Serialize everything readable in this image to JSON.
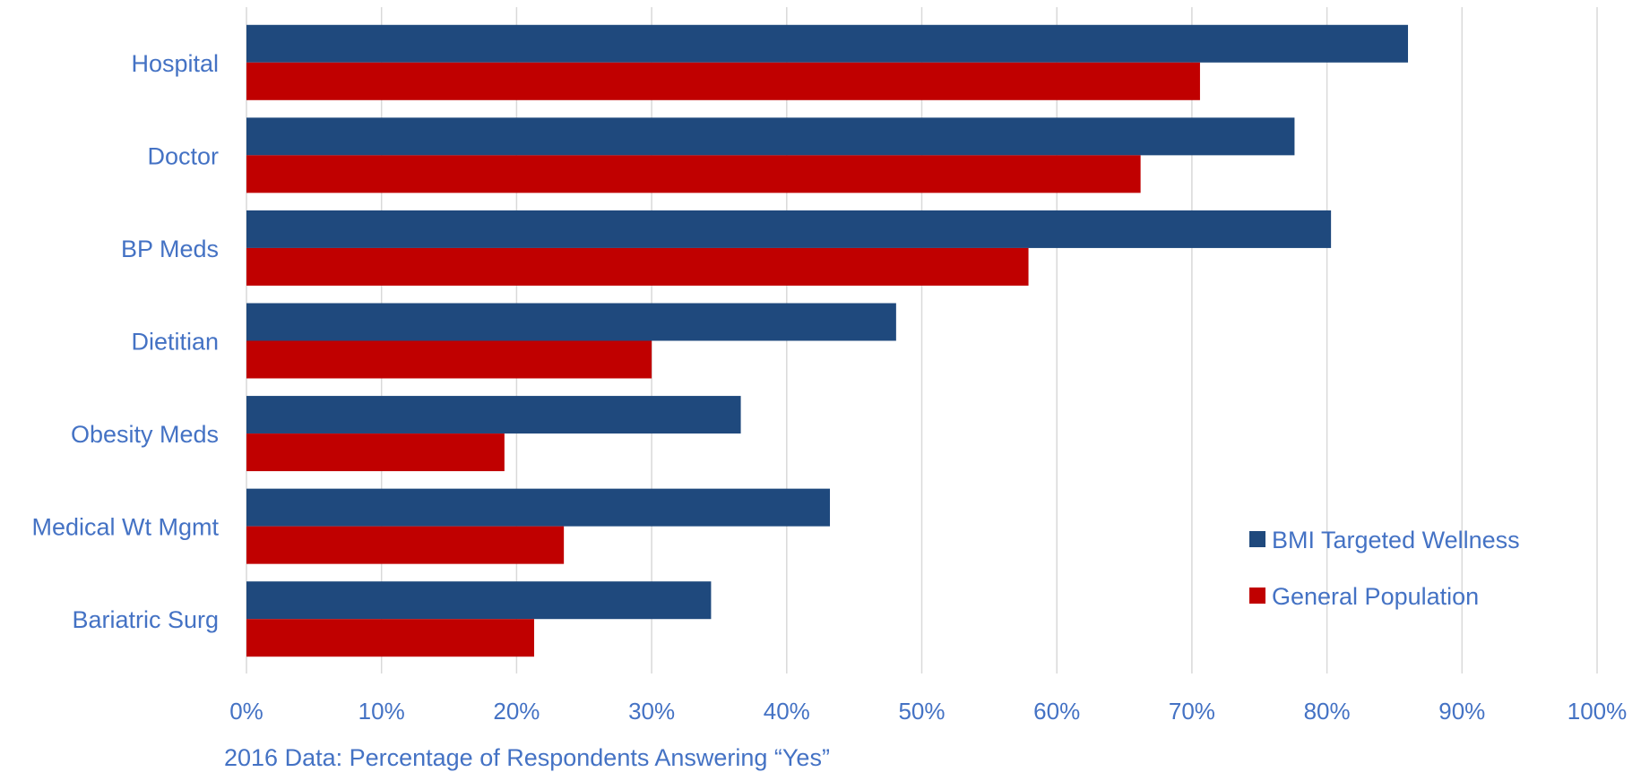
{
  "chart_data": {
    "type": "bar",
    "orientation": "horizontal",
    "categories": [
      "Hospital",
      "Doctor",
      "BP Meds",
      "Dietitian",
      "Obesity Meds",
      "Medical Wt Mgmt",
      "Bariatric Surg"
    ],
    "series": [
      {
        "name": "BMI Targeted Wellness",
        "color": "#1F497D",
        "values": [
          86,
          77.6,
          80.3,
          48.1,
          36.6,
          43.2,
          34.4
        ]
      },
      {
        "name": "General Population",
        "color": "#C00000",
        "values": [
          70.6,
          66.2,
          57.9,
          30,
          19.1,
          23.5,
          21.3
        ]
      }
    ],
    "xlabel": "2016 Data: Percentage of Respondents Answering “Yes”",
    "xlim": [
      0,
      100
    ],
    "xticks": [
      "0%",
      "10%",
      "20%",
      "30%",
      "40%",
      "50%",
      "60%",
      "70%",
      "80%",
      "90%",
      "100%"
    ],
    "grid": "vertical",
    "legend_position": "bottom-right",
    "text_color": "#4472C4"
  }
}
